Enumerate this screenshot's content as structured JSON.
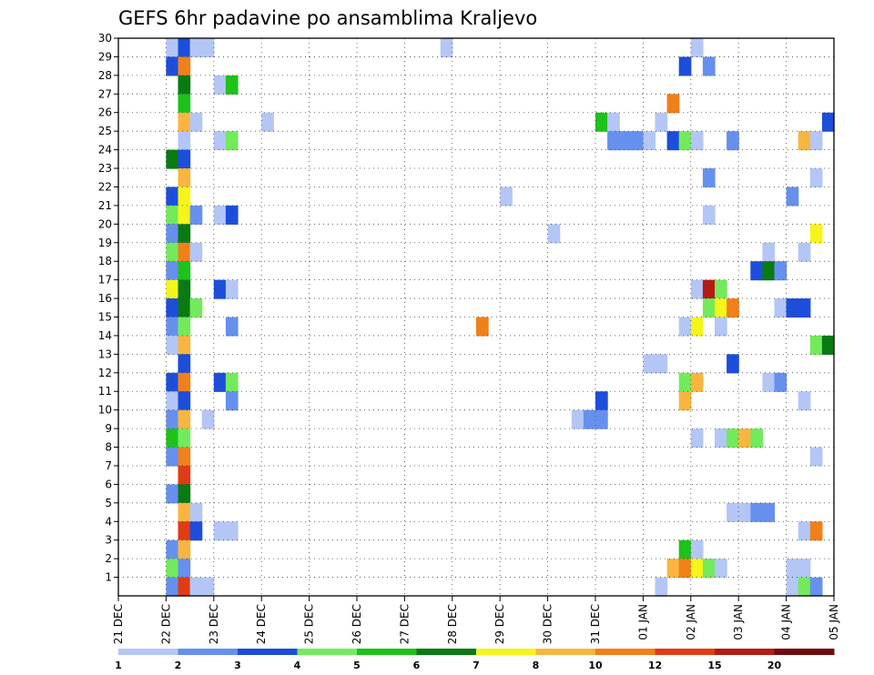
{
  "chart_data": {
    "type": "heatmap",
    "title": "GEFS 6hr padavine po ansamblima Kraljevo",
    "xlabel": "",
    "ylabel": "",
    "x_tick_labels": [
      "21 DEC",
      "22 DEC",
      "23 DEC",
      "24 DEC",
      "25 DEC",
      "26 DEC",
      "27 DEC",
      "28 DEC",
      "29 DEC",
      "30 DEC",
      "31 DEC",
      "01 JAN",
      "02 JAN",
      "03 JAN",
      "04 JAN",
      "05 JAN"
    ],
    "y_tick_labels": [
      "1",
      "2",
      "3",
      "4",
      "5",
      "6",
      "7",
      "8",
      "9",
      "10",
      "11",
      "12",
      "13",
      "14",
      "15",
      "16",
      "17",
      "18",
      "19",
      "20",
      "21",
      "22",
      "23",
      "24",
      "25",
      "26",
      "27",
      "28",
      "29",
      "30"
    ],
    "xlim_days": [
      0,
      15
    ],
    "ylim": [
      0,
      30
    ],
    "grid": true,
    "legend": "bottom colorbar",
    "colorbar": {
      "labels": [
        "1",
        "2",
        "3",
        "4",
        "5",
        "6",
        "7",
        "8",
        "10",
        "12",
        "15",
        "20"
      ],
      "colors": [
        "#b3c6f5",
        "#6690ee",
        "#1c4edb",
        "#73ea5c",
        "#1dc21a",
        "#0a7a12",
        "#f5f51a",
        "#f9b53f",
        "#f0801a",
        "#e03b15",
        "#b51b14",
        "#6e0a0e"
      ]
    },
    "cells": [
      {
        "m": 30,
        "s": 4,
        "c": 1
      },
      {
        "m": 30,
        "s": 5,
        "c": 3
      },
      {
        "m": 30,
        "s": 6,
        "c": 1
      },
      {
        "m": 30,
        "s": 7,
        "c": 1
      },
      {
        "m": 30,
        "s": 27,
        "c": 1
      },
      {
        "m": 30,
        "s": 48,
        "c": 1
      },
      {
        "m": 29,
        "s": 4,
        "c": 3
      },
      {
        "m": 29,
        "s": 5,
        "c": 9
      },
      {
        "m": 29,
        "s": 47,
        "c": 3
      },
      {
        "m": 29,
        "s": 49,
        "c": 2
      },
      {
        "m": 28,
        "s": 5,
        "c": 6
      },
      {
        "m": 28,
        "s": 8,
        "c": 1
      },
      {
        "m": 28,
        "s": 9,
        "c": 5
      },
      {
        "m": 27,
        "s": 5,
        "c": 5
      },
      {
        "m": 27,
        "s": 46,
        "c": 9
      },
      {
        "m": 26,
        "s": 5,
        "c": 8
      },
      {
        "m": 26,
        "s": 6,
        "c": 1
      },
      {
        "m": 26,
        "s": 12,
        "c": 1
      },
      {
        "m": 26,
        "s": 40,
        "c": 5
      },
      {
        "m": 26,
        "s": 41,
        "c": 1
      },
      {
        "m": 26,
        "s": 45,
        "c": 1
      },
      {
        "m": 26,
        "s": 59,
        "c": 3
      },
      {
        "m": 25,
        "s": 5,
        "c": 1
      },
      {
        "m": 25,
        "s": 8,
        "c": 1
      },
      {
        "m": 25,
        "s": 9,
        "c": 4
      },
      {
        "m": 25,
        "s": 41,
        "c": 2
      },
      {
        "m": 25,
        "s": 42,
        "c": 2
      },
      {
        "m": 25,
        "s": 43,
        "c": 2
      },
      {
        "m": 25,
        "s": 44,
        "c": 1
      },
      {
        "m": 25,
        "s": 46,
        "c": 3
      },
      {
        "m": 25,
        "s": 47,
        "c": 4
      },
      {
        "m": 25,
        "s": 48,
        "c": 1
      },
      {
        "m": 25,
        "s": 51,
        "c": 2
      },
      {
        "m": 25,
        "s": 57,
        "c": 8
      },
      {
        "m": 25,
        "s": 58,
        "c": 1
      },
      {
        "m": 24,
        "s": 4,
        "c": 6
      },
      {
        "m": 24,
        "s": 5,
        "c": 3
      },
      {
        "m": 23,
        "s": 5,
        "c": 8
      },
      {
        "m": 23,
        "s": 49,
        "c": 2
      },
      {
        "m": 23,
        "s": 58,
        "c": 1
      },
      {
        "m": 22,
        "s": 4,
        "c": 3
      },
      {
        "m": 22,
        "s": 5,
        "c": 7
      },
      {
        "m": 22,
        "s": 32,
        "c": 1
      },
      {
        "m": 22,
        "s": 56,
        "c": 2
      },
      {
        "m": 21,
        "s": 4,
        "c": 4
      },
      {
        "m": 21,
        "s": 5,
        "c": 7
      },
      {
        "m": 21,
        "s": 6,
        "c": 2
      },
      {
        "m": 21,
        "s": 8,
        "c": 1
      },
      {
        "m": 21,
        "s": 9,
        "c": 3
      },
      {
        "m": 21,
        "s": 49,
        "c": 1
      },
      {
        "m": 20,
        "s": 4,
        "c": 2
      },
      {
        "m": 20,
        "s": 5,
        "c": 6
      },
      {
        "m": 20,
        "s": 36,
        "c": 1
      },
      {
        "m": 20,
        "s": 58,
        "c": 7
      },
      {
        "m": 19,
        "s": 4,
        "c": 4
      },
      {
        "m": 19,
        "s": 5,
        "c": 9
      },
      {
        "m": 19,
        "s": 6,
        "c": 1
      },
      {
        "m": 19,
        "s": 54,
        "c": 1
      },
      {
        "m": 19,
        "s": 57,
        "c": 1
      },
      {
        "m": 18,
        "s": 4,
        "c": 2
      },
      {
        "m": 18,
        "s": 5,
        "c": 5
      },
      {
        "m": 18,
        "s": 53,
        "c": 3
      },
      {
        "m": 18,
        "s": 54,
        "c": 6
      },
      {
        "m": 18,
        "s": 55,
        "c": 2
      },
      {
        "m": 17,
        "s": 4,
        "c": 7
      },
      {
        "m": 17,
        "s": 5,
        "c": 6
      },
      {
        "m": 17,
        "s": 8,
        "c": 3
      },
      {
        "m": 17,
        "s": 9,
        "c": 1
      },
      {
        "m": 17,
        "s": 48,
        "c": 1
      },
      {
        "m": 17,
        "s": 49,
        "c": 11
      },
      {
        "m": 17,
        "s": 50,
        "c": 4
      },
      {
        "m": 16,
        "s": 4,
        "c": 3
      },
      {
        "m": 16,
        "s": 5,
        "c": 6
      },
      {
        "m": 16,
        "s": 6,
        "c": 4
      },
      {
        "m": 16,
        "s": 49,
        "c": 4
      },
      {
        "m": 16,
        "s": 50,
        "c": 7
      },
      {
        "m": 16,
        "s": 51,
        "c": 9
      },
      {
        "m": 16,
        "s": 55,
        "c": 1
      },
      {
        "m": 16,
        "s": 56,
        "c": 3
      },
      {
        "m": 16,
        "s": 57,
        "c": 3
      },
      {
        "m": 15,
        "s": 4,
        "c": 2
      },
      {
        "m": 15,
        "s": 5,
        "c": 4
      },
      {
        "m": 15,
        "s": 9,
        "c": 2
      },
      {
        "m": 15,
        "s": 30,
        "c": 9
      },
      {
        "m": 15,
        "s": 47,
        "c": 1
      },
      {
        "m": 15,
        "s": 48,
        "c": 7
      },
      {
        "m": 15,
        "s": 50,
        "c": 1
      },
      {
        "m": 14,
        "s": 4,
        "c": 1
      },
      {
        "m": 14,
        "s": 5,
        "c": 8
      },
      {
        "m": 14,
        "s": 58,
        "c": 4
      },
      {
        "m": 14,
        "s": 59,
        "c": 6
      },
      {
        "m": 13,
        "s": 5,
        "c": 3
      },
      {
        "m": 13,
        "s": 44,
        "c": 1
      },
      {
        "m": 13,
        "s": 45,
        "c": 1
      },
      {
        "m": 13,
        "s": 51,
        "c": 3
      },
      {
        "m": 12,
        "s": 4,
        "c": 3
      },
      {
        "m": 12,
        "s": 5,
        "c": 9
      },
      {
        "m": 12,
        "s": 8,
        "c": 3
      },
      {
        "m": 12,
        "s": 9,
        "c": 4
      },
      {
        "m": 12,
        "s": 47,
        "c": 4
      },
      {
        "m": 12,
        "s": 48,
        "c": 8
      },
      {
        "m": 12,
        "s": 54,
        "c": 1
      },
      {
        "m": 12,
        "s": 55,
        "c": 2
      },
      {
        "m": 11,
        "s": 4,
        "c": 1
      },
      {
        "m": 11,
        "s": 5,
        "c": 3
      },
      {
        "m": 11,
        "s": 9,
        "c": 2
      },
      {
        "m": 11,
        "s": 40,
        "c": 3
      },
      {
        "m": 11,
        "s": 47,
        "c": 8
      },
      {
        "m": 11,
        "s": 57,
        "c": 1
      },
      {
        "m": 10,
        "s": 4,
        "c": 2
      },
      {
        "m": 10,
        "s": 5,
        "c": 8
      },
      {
        "m": 10,
        "s": 7,
        "c": 1
      },
      {
        "m": 10,
        "s": 38,
        "c": 1
      },
      {
        "m": 10,
        "s": 39,
        "c": 2
      },
      {
        "m": 10,
        "s": 40,
        "c": 2
      },
      {
        "m": 9,
        "s": 4,
        "c": 5
      },
      {
        "m": 9,
        "s": 5,
        "c": 4
      },
      {
        "m": 9,
        "s": 48,
        "c": 1
      },
      {
        "m": 9,
        "s": 50,
        "c": 1
      },
      {
        "m": 9,
        "s": 51,
        "c": 4
      },
      {
        "m": 9,
        "s": 52,
        "c": 8
      },
      {
        "m": 9,
        "s": 53,
        "c": 4
      },
      {
        "m": 8,
        "s": 4,
        "c": 2
      },
      {
        "m": 8,
        "s": 5,
        "c": 9
      },
      {
        "m": 8,
        "s": 58,
        "c": 1
      },
      {
        "m": 7,
        "s": 5,
        "c": 10
      },
      {
        "m": 6,
        "s": 4,
        "c": 2
      },
      {
        "m": 6,
        "s": 5,
        "c": 6
      },
      {
        "m": 5,
        "s": 5,
        "c": 8
      },
      {
        "m": 5,
        "s": 6,
        "c": 1
      },
      {
        "m": 5,
        "s": 51,
        "c": 1
      },
      {
        "m": 5,
        "s": 52,
        "c": 1
      },
      {
        "m": 5,
        "s": 53,
        "c": 2
      },
      {
        "m": 5,
        "s": 54,
        "c": 2
      },
      {
        "m": 4,
        "s": 5,
        "c": 10
      },
      {
        "m": 4,
        "s": 6,
        "c": 3
      },
      {
        "m": 4,
        "s": 8,
        "c": 1
      },
      {
        "m": 4,
        "s": 9,
        "c": 1
      },
      {
        "m": 4,
        "s": 57,
        "c": 1
      },
      {
        "m": 4,
        "s": 58,
        "c": 9
      },
      {
        "m": 3,
        "s": 4,
        "c": 2
      },
      {
        "m": 3,
        "s": 5,
        "c": 8
      },
      {
        "m": 3,
        "s": 47,
        "c": 5
      },
      {
        "m": 3,
        "s": 48,
        "c": 1
      },
      {
        "m": 2,
        "s": 4,
        "c": 4
      },
      {
        "m": 2,
        "s": 5,
        "c": 2
      },
      {
        "m": 2,
        "s": 46,
        "c": 8
      },
      {
        "m": 2,
        "s": 47,
        "c": 9
      },
      {
        "m": 2,
        "s": 48,
        "c": 7
      },
      {
        "m": 2,
        "s": 49,
        "c": 4
      },
      {
        "m": 2,
        "s": 50,
        "c": 1
      },
      {
        "m": 2,
        "s": 56,
        "c": 1
      },
      {
        "m": 2,
        "s": 57,
        "c": 1
      },
      {
        "m": 1,
        "s": 4,
        "c": 2
      },
      {
        "m": 1,
        "s": 5,
        "c": 10
      },
      {
        "m": 1,
        "s": 6,
        "c": 1
      },
      {
        "m": 1,
        "s": 7,
        "c": 1
      },
      {
        "m": 1,
        "s": 45,
        "c": 1
      },
      {
        "m": 1,
        "s": 56,
        "c": 1
      },
      {
        "m": 1,
        "s": 57,
        "c": 4
      },
      {
        "m": 1,
        "s": 58,
        "c": 2
      }
    ]
  }
}
